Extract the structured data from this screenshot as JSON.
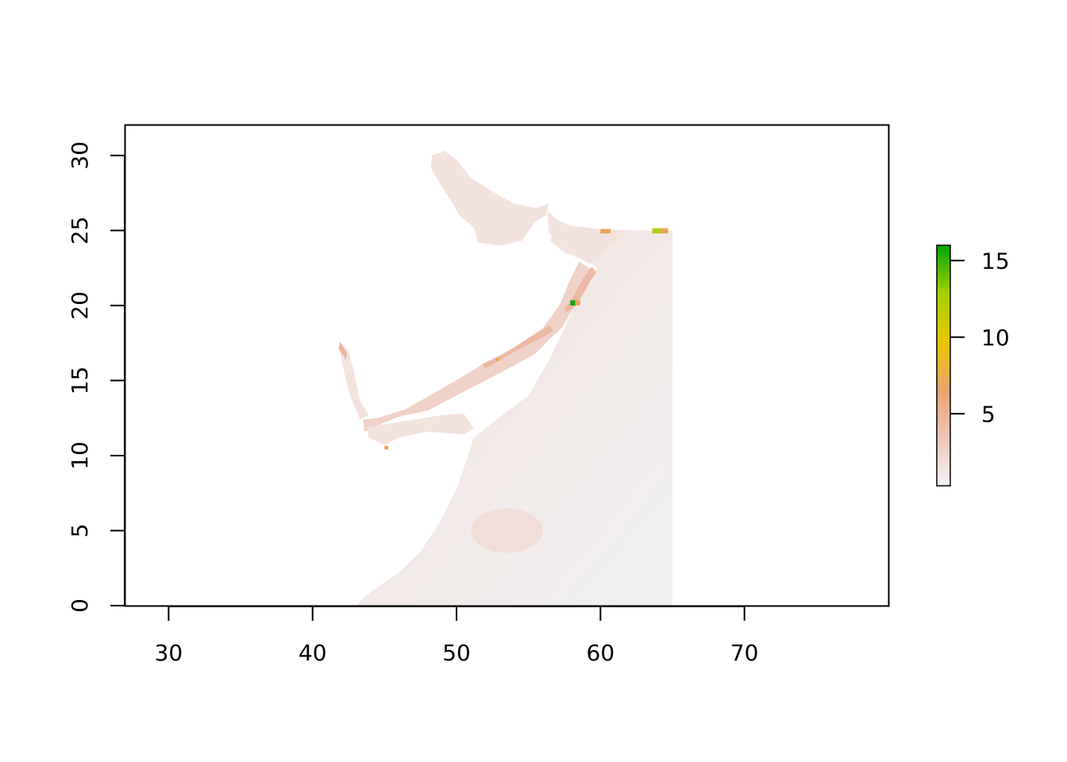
{
  "chart_data": {
    "type": "heatmap",
    "x_axis": {
      "range": [
        27,
        80
      ],
      "ticks": [
        30,
        40,
        50,
        60,
        70
      ],
      "tick_labels": [
        "30",
        "40",
        "50",
        "60",
        "70"
      ]
    },
    "y_axis": {
      "range": [
        0,
        32
      ],
      "ticks": [
        0,
        5,
        10,
        15,
        20,
        25,
        30
      ],
      "tick_labels": [
        "0",
        "5",
        "10",
        "15",
        "20",
        "25",
        "30"
      ]
    },
    "data_extent": {
      "x": [
        43,
        65
      ],
      "y": [
        0,
        30.3
      ]
    },
    "legend": {
      "placement": "right",
      "range": [
        0.3,
        16
      ],
      "ticks": [
        5,
        10,
        15
      ],
      "tick_labels": [
        "5",
        "10",
        "15"
      ],
      "colors": [
        "#f2f2f2",
        "#efc6b9",
        "#eaa26e",
        "#e9c600",
        "#a5d000",
        "#00a600"
      ]
    },
    "raster_colors": {
      "background_low": "#f0f0f0",
      "background_mid": "#f3e3df",
      "coastal": "#f0d2c8",
      "coastal_high": "#ebb8a3",
      "hotspot_orange": "#e9a45a",
      "hotspot_yellow": "#b8cc10",
      "hotspot_green": "#17a617"
    },
    "grid": false
  }
}
